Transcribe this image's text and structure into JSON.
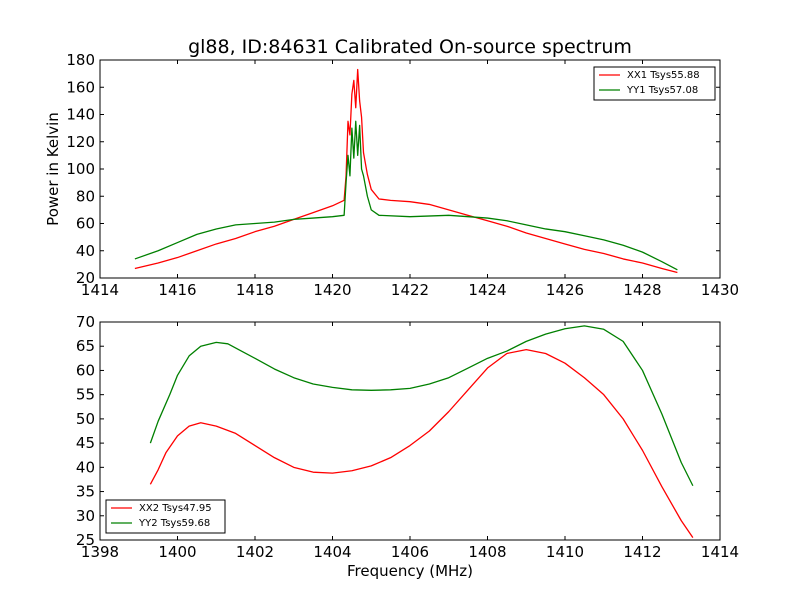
{
  "chart_data": [
    {
      "type": "line",
      "title": "gl88, ID:84631 Calibrated On-source spectrum",
      "xlabel": "",
      "ylabel": "Power in Kelvin",
      "xlim": [
        1414,
        1430
      ],
      "ylim": [
        20,
        180
      ],
      "xticks": [
        "1414",
        "1416",
        "1418",
        "1420",
        "1422",
        "1424",
        "1426",
        "1428",
        "1430"
      ],
      "yticks": [
        "20",
        "40",
        "60",
        "80",
        "100",
        "120",
        "140",
        "160",
        "180"
      ],
      "legend_position": "upper right",
      "series": [
        {
          "name": "XX1 Tsys55.88",
          "color": "#ff0000",
          "points": [
            [
              1414.9,
              27
            ],
            [
              1415.5,
              31
            ],
            [
              1416.0,
              35
            ],
            [
              1416.5,
              40
            ],
            [
              1417.0,
              45
            ],
            [
              1417.5,
              49
            ],
            [
              1418.0,
              54
            ],
            [
              1418.5,
              58
            ],
            [
              1419.0,
              63
            ],
            [
              1419.5,
              68
            ],
            [
              1420.0,
              73
            ],
            [
              1420.3,
              77
            ],
            [
              1420.35,
              95
            ],
            [
              1420.4,
              135
            ],
            [
              1420.45,
              125
            ],
            [
              1420.5,
              155
            ],
            [
              1420.55,
              165
            ],
            [
              1420.6,
              145
            ],
            [
              1420.65,
              173
            ],
            [
              1420.7,
              150
            ],
            [
              1420.75,
              138
            ],
            [
              1420.8,
              112
            ],
            [
              1420.9,
              96
            ],
            [
              1421.0,
              85
            ],
            [
              1421.2,
              78
            ],
            [
              1421.5,
              77
            ],
            [
              1422.0,
              76
            ],
            [
              1422.5,
              74
            ],
            [
              1423.0,
              70
            ],
            [
              1423.5,
              66
            ],
            [
              1424.0,
              62
            ],
            [
              1424.5,
              58
            ],
            [
              1425.0,
              53
            ],
            [
              1425.5,
              49
            ],
            [
              1426.0,
              45
            ],
            [
              1426.5,
              41
            ],
            [
              1427.0,
              38
            ],
            [
              1427.5,
              34
            ],
            [
              1428.0,
              31
            ],
            [
              1428.5,
              27
            ],
            [
              1428.9,
              24
            ]
          ]
        },
        {
          "name": "YY1 Tsys57.08",
          "color": "#008000",
          "points": [
            [
              1414.9,
              34
            ],
            [
              1415.5,
              40
            ],
            [
              1416.0,
              46
            ],
            [
              1416.5,
              52
            ],
            [
              1417.0,
              56
            ],
            [
              1417.5,
              59
            ],
            [
              1418.0,
              60
            ],
            [
              1418.5,
              61
            ],
            [
              1419.0,
              63
            ],
            [
              1419.5,
              64
            ],
            [
              1420.0,
              65
            ],
            [
              1420.3,
              66
            ],
            [
              1420.35,
              90
            ],
            [
              1420.4,
              110
            ],
            [
              1420.45,
              95
            ],
            [
              1420.5,
              130
            ],
            [
              1420.55,
              108
            ],
            [
              1420.6,
              135
            ],
            [
              1420.65,
              110
            ],
            [
              1420.7,
              132
            ],
            [
              1420.75,
              100
            ],
            [
              1420.8,
              95
            ],
            [
              1420.9,
              80
            ],
            [
              1421.0,
              70
            ],
            [
              1421.2,
              66
            ],
            [
              1422.0,
              65
            ],
            [
              1423.0,
              66
            ],
            [
              1424.0,
              64
            ],
            [
              1424.5,
              62
            ],
            [
              1425.0,
              59
            ],
            [
              1425.5,
              56
            ],
            [
              1426.0,
              54
            ],
            [
              1426.5,
              51
            ],
            [
              1427.0,
              48
            ],
            [
              1427.5,
              44
            ],
            [
              1428.0,
              39
            ],
            [
              1428.5,
              32
            ],
            [
              1428.9,
              26
            ]
          ]
        }
      ]
    },
    {
      "type": "line",
      "title": "",
      "xlabel": "Frequency (MHz)",
      "ylabel": "",
      "xlim": [
        1398,
        1414
      ],
      "ylim": [
        25,
        70
      ],
      "xticks": [
        "1398",
        "1400",
        "1402",
        "1404",
        "1406",
        "1408",
        "1410",
        "1412",
        "1414"
      ],
      "yticks": [
        "25",
        "30",
        "35",
        "40",
        "45",
        "50",
        "55",
        "60",
        "65",
        "70"
      ],
      "legend_position": "lower left",
      "series": [
        {
          "name": "XX2 Tsys47.95",
          "color": "#ff0000",
          "points": [
            [
              1399.3,
              36.5
            ],
            [
              1399.5,
              39.5
            ],
            [
              1399.7,
              43
            ],
            [
              1400.0,
              46.5
            ],
            [
              1400.3,
              48.5
            ],
            [
              1400.6,
              49.2
            ],
            [
              1401.0,
              48.5
            ],
            [
              1401.5,
              47
            ],
            [
              1402.0,
              44.5
            ],
            [
              1402.5,
              42
            ],
            [
              1403.0,
              40
            ],
            [
              1403.5,
              39
            ],
            [
              1404.0,
              38.8
            ],
            [
              1404.5,
              39.3
            ],
            [
              1405.0,
              40.3
            ],
            [
              1405.5,
              42
            ],
            [
              1406.0,
              44.5
            ],
            [
              1406.5,
              47.5
            ],
            [
              1407.0,
              51.5
            ],
            [
              1407.5,
              56
            ],
            [
              1408.0,
              60.5
            ],
            [
              1408.5,
              63.5
            ],
            [
              1409.0,
              64.3
            ],
            [
              1409.5,
              63.5
            ],
            [
              1410.0,
              61.5
            ],
            [
              1410.5,
              58.5
            ],
            [
              1411.0,
              55
            ],
            [
              1411.5,
              50
            ],
            [
              1412.0,
              43.5
            ],
            [
              1412.5,
              36
            ],
            [
              1413.0,
              29
            ],
            [
              1413.3,
              25.5
            ]
          ]
        },
        {
          "name": "YY2 Tsys59.68",
          "color": "#008000",
          "points": [
            [
              1399.3,
              45
            ],
            [
              1399.5,
              49.5
            ],
            [
              1399.8,
              55
            ],
            [
              1400.0,
              59
            ],
            [
              1400.3,
              63
            ],
            [
              1400.6,
              65
            ],
            [
              1401.0,
              65.8
            ],
            [
              1401.3,
              65.5
            ],
            [
              1401.6,
              64.2
            ],
            [
              1402.0,
              62.5
            ],
            [
              1402.5,
              60.3
            ],
            [
              1403.0,
              58.5
            ],
            [
              1403.5,
              57.2
            ],
            [
              1404.0,
              56.5
            ],
            [
              1404.5,
              56
            ],
            [
              1405.0,
              55.9
            ],
            [
              1405.5,
              56
            ],
            [
              1406.0,
              56.3
            ],
            [
              1406.5,
              57.2
            ],
            [
              1407.0,
              58.5
            ],
            [
              1407.5,
              60.5
            ],
            [
              1408.0,
              62.5
            ],
            [
              1408.5,
              64
            ],
            [
              1409.0,
              66
            ],
            [
              1409.5,
              67.5
            ],
            [
              1410.0,
              68.6
            ],
            [
              1410.5,
              69.2
            ],
            [
              1411.0,
              68.5
            ],
            [
              1411.5,
              66
            ],
            [
              1412.0,
              60
            ],
            [
              1412.5,
              51
            ],
            [
              1413.0,
              41
            ],
            [
              1413.3,
              36.2
            ]
          ]
        }
      ]
    }
  ]
}
